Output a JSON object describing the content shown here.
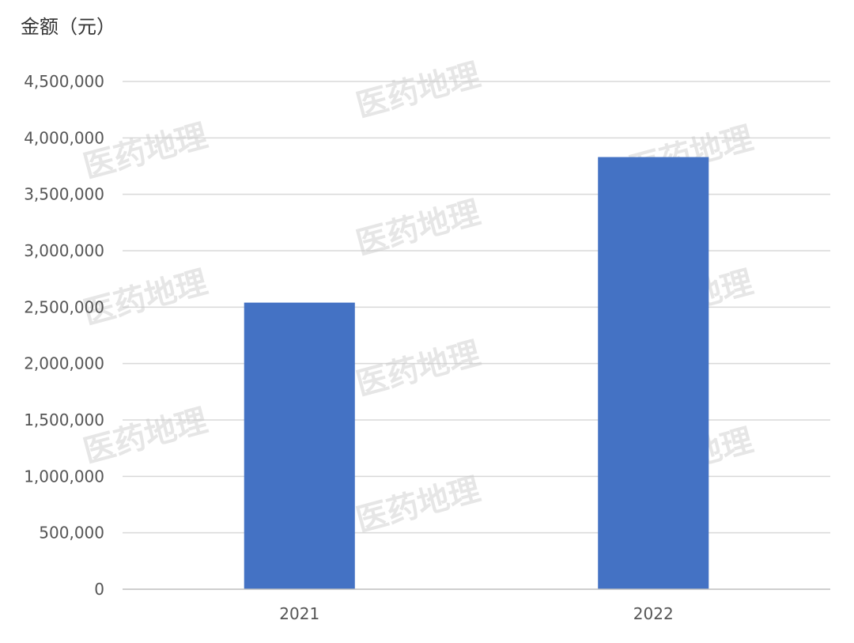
{
  "chart_data": {
    "type": "bar",
    "ylabel": "金额（元）",
    "categories": [
      "2021",
      "2022"
    ],
    "values": [
      2540000,
      3830000
    ],
    "ylim": [
      0,
      4500000
    ],
    "yticks": [
      0,
      500000,
      1000000,
      1500000,
      2000000,
      2500000,
      3000000,
      3500000,
      4000000,
      4500000
    ],
    "ytick_labels": [
      "0",
      "500,000",
      "1,000,000",
      "1,500,000",
      "2,000,000",
      "2,500,000",
      "3,000,000",
      "3,500,000",
      "4,000,000",
      "4,500,000"
    ],
    "grid": true,
    "bar_color": "#4472c4",
    "watermark": "医药地理"
  }
}
